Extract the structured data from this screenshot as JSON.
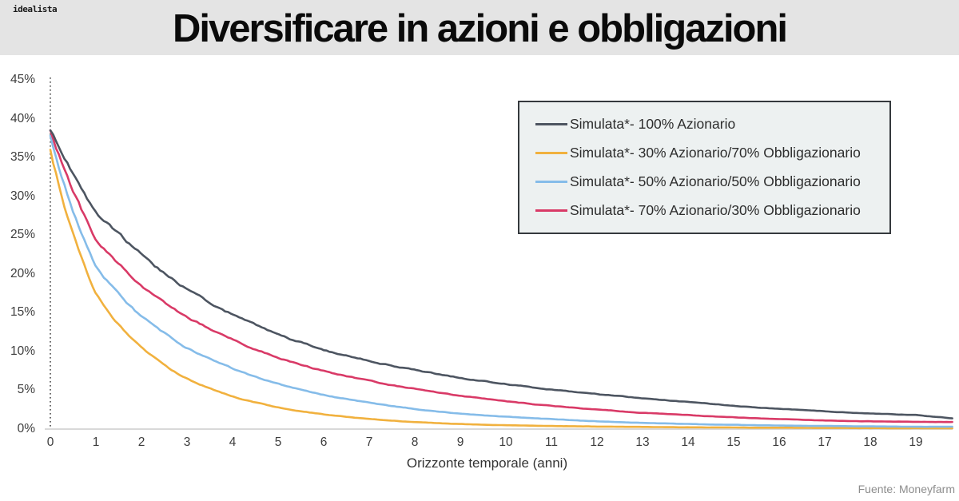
{
  "header": {
    "logo": "idealista",
    "title": "Diversificare in azioni e obbligazioni"
  },
  "source_label": "Fuente: Moneyfarm",
  "colors": {
    "header_bg": "#e4e4e4",
    "legend_bg": "#edf1f1",
    "legend_border": "#35393d",
    "axis_line": "#d9d9d9",
    "dotted_axis": "#4a4a4a",
    "tick_text": "#3d3d3d"
  },
  "chart_data": {
    "type": "line",
    "title": "Diversificare in azioni e obbligazioni",
    "xlabel": "Orizzonte temporale (anni)",
    "ylabel": "",
    "xlim": [
      0,
      19.8
    ],
    "ylim": [
      0,
      45
    ],
    "grid": false,
    "legend_position": "top-right",
    "y_tick_labels": [
      "45%",
      "40%",
      "35%",
      "30%",
      "25%",
      "20%",
      "15%",
      "10%",
      "5%",
      "0%"
    ],
    "x_tick_labels": [
      "0",
      "1",
      "2",
      "3",
      "4",
      "5",
      "6",
      "7",
      "8",
      "9",
      "10",
      "11",
      "12",
      "13",
      "14",
      "15",
      "16",
      "17",
      "18",
      "19"
    ],
    "x_years": [
      0,
      1,
      2,
      3,
      4,
      5,
      6,
      7,
      8,
      9,
      10,
      11,
      12,
      13,
      14,
      15,
      16,
      17,
      18,
      19,
      19.8
    ],
    "series": [
      {
        "name": "Simulata*- 100% Azionario",
        "color": "#4d5561",
        "values": [
          38.5,
          28.0,
          22.5,
          18.0,
          14.8,
          12.2,
          10.2,
          8.8,
          7.6,
          6.6,
          5.8,
          5.1,
          4.5,
          4.0,
          3.5,
          3.0,
          2.6,
          2.3,
          2.0,
          1.8,
          1.4
        ]
      },
      {
        "name": "Simulata*- 30% Azionario/70% Obbligazionario",
        "color": "#f1b13e",
        "values": [
          36.0,
          17.5,
          10.5,
          6.5,
          4.2,
          2.8,
          1.9,
          1.3,
          0.9,
          0.65,
          0.5,
          0.4,
          0.32,
          0.27,
          0.23,
          0.2,
          0.17,
          0.15,
          0.13,
          0.12,
          0.1
        ]
      },
      {
        "name": "Simulata*- 50% Azionario/50% Obbligazionario",
        "color": "#85bce9",
        "values": [
          37.8,
          21.0,
          14.5,
          10.5,
          7.8,
          5.8,
          4.4,
          3.4,
          2.6,
          2.0,
          1.6,
          1.3,
          1.0,
          0.8,
          0.65,
          0.55,
          0.45,
          0.4,
          0.35,
          0.3,
          0.3
        ]
      },
      {
        "name": "Simulata*- 70% Azionario/30% Obbligazionario",
        "color": "#d93a67",
        "values": [
          38.5,
          24.5,
          18.5,
          14.5,
          11.5,
          9.2,
          7.5,
          6.2,
          5.2,
          4.3,
          3.6,
          3.0,
          2.5,
          2.1,
          1.8,
          1.5,
          1.3,
          1.1,
          1.0,
          0.95,
          0.9
        ]
      }
    ]
  }
}
